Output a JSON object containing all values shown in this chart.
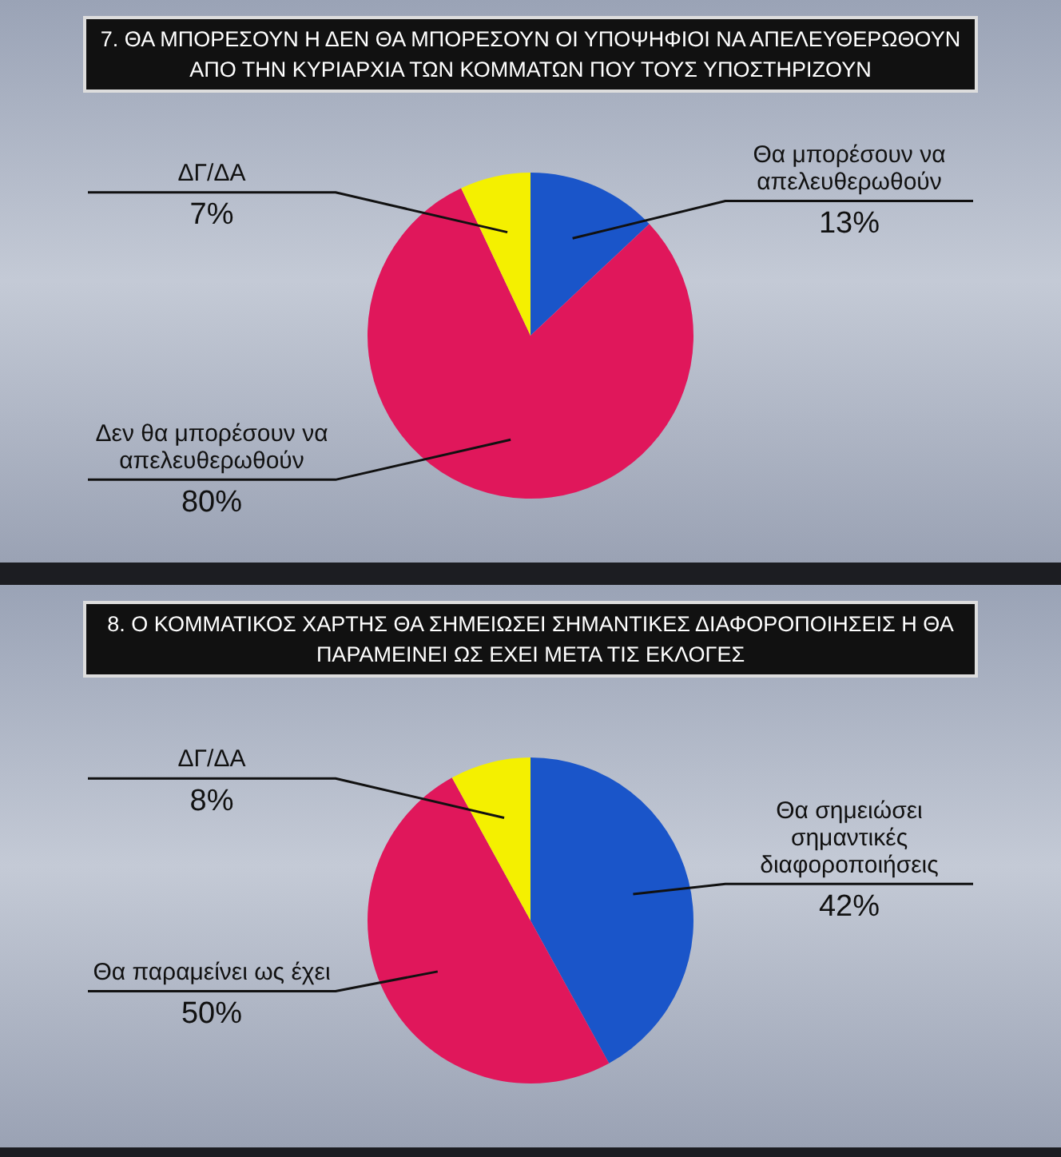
{
  "chart_data": [
    {
      "type": "pie",
      "title": "7. ΘΑ ΜΠΟΡΕΣΟΥΝ Η ΔΕΝ ΘΑ ΜΠΟΡΕΣΟΥΝ ΟΙ ΥΠΟΨΗΦΙΟΙ ΝΑ ΑΠΕΛΕΥΘΕΡΩΘΟΥΝ ΑΠΟ ΤΗΝ ΚΥΡΙΑΡΧΙΑ ΤΩΝ ΚΟΜΜΑΤΩΝ ΠΟΥ ΤΟΥΣ ΥΠΟΣΤΗΡΙΖΟΥΝ",
      "categories": [
        "Θα μπορέσουν να απελευθερωθούν",
        "Δεν θα μπορέσουν να απελευθερωθούν",
        "ΔΓ/ΔΑ"
      ],
      "values": [
        13,
        80,
        7
      ],
      "colors": [
        "#1a55c9",
        "#e0175b",
        "#f4f000"
      ],
      "value_labels": [
        "13%",
        "80%",
        "7%"
      ],
      "legend": false
    },
    {
      "type": "pie",
      "title": "8. Ο ΚΟΜΜΑΤΙΚΟΣ ΧΑΡΤΗΣ ΘΑ ΣΗΜΕΙΩΣΕΙ ΣΗΜΑΝΤΙΚΕΣ ΔΙΑΦΟΡΟΠΟΙΗΣΕΙΣ Η ΘΑ ΠΑΡΑΜΕΙΝΕΙ ΩΣ ΕΧΕΙ ΜΕΤΑ ΤΙΣ ΕΚΛΟΓΕΣ",
      "categories": [
        "Θα σημειώσει σημαντικές διαφοροποιήσεις",
        "Θα παραμείνει ως έχει",
        "ΔΓ/ΔΑ"
      ],
      "values": [
        42,
        50,
        8
      ],
      "colors": [
        "#1a55c9",
        "#e0175b",
        "#f4f000"
      ],
      "value_labels": [
        "42%",
        "50%",
        "8%"
      ],
      "legend": false
    }
  ]
}
